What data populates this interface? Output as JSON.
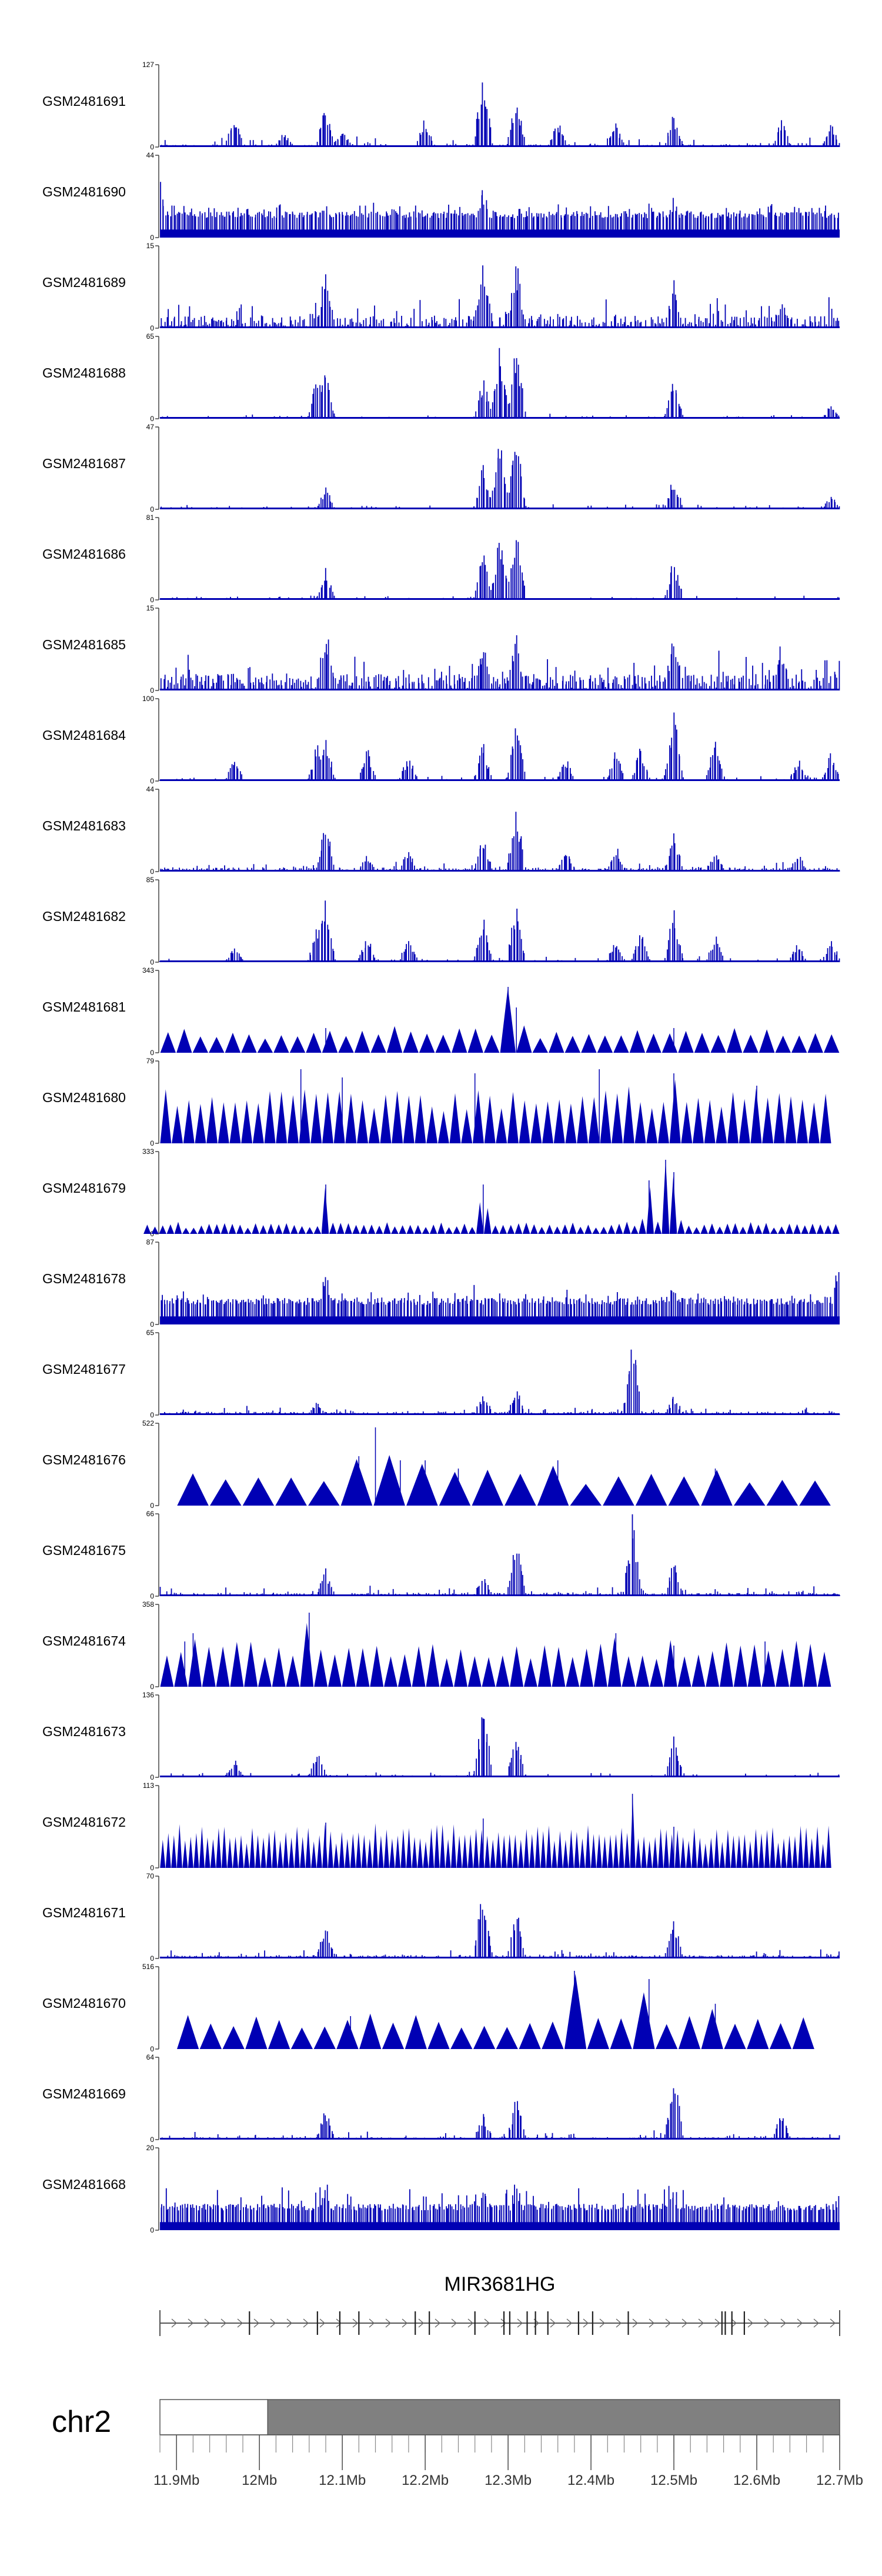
{
  "chart_data": {
    "type": "genome-browser-tracks",
    "tracks": [
      {
        "name": "GSM2481691",
        "ymax": 127,
        "ymin": 0,
        "style": "dense",
        "seed": 11,
        "base": 0.03,
        "noise": 0.12,
        "peaks": [
          [
            11.97,
            0.45
          ],
          [
            12.03,
            0.2
          ],
          [
            12.08,
            0.55
          ],
          [
            12.1,
            0.25
          ],
          [
            12.2,
            0.4
          ],
          [
            12.27,
            1.0
          ],
          [
            12.31,
            0.7
          ],
          [
            12.36,
            0.35
          ],
          [
            12.43,
            0.3
          ],
          [
            12.5,
            0.45
          ],
          [
            12.63,
            0.35
          ],
          [
            12.69,
            0.3
          ]
        ]
      },
      {
        "name": "GSM2481690",
        "ymax": 44,
        "ymin": 0,
        "style": "hash",
        "seed": 12,
        "base": 0.28,
        "noise": 0.12,
        "peaks": [
          [
            11.88,
            0.9
          ],
          [
            12.08,
            0.5
          ],
          [
            12.27,
            0.7
          ],
          [
            12.5,
            0.6
          ]
        ]
      },
      {
        "name": "GSM2481689",
        "ymax": 15,
        "ymin": 0,
        "style": "dense",
        "seed": 13,
        "base": 0.15,
        "noise": 0.35,
        "peaks": [
          [
            12.08,
            0.8
          ],
          [
            12.27,
            1.0
          ],
          [
            12.31,
            0.9
          ],
          [
            12.5,
            0.6
          ],
          [
            12.63,
            0.4
          ]
        ]
      },
      {
        "name": "GSM2481688",
        "ymax": 65,
        "ymin": 0,
        "style": "dense",
        "seed": 14,
        "base": 0.02,
        "noise": 0.05,
        "peaks": [
          [
            12.07,
            0.6
          ],
          [
            12.08,
            0.65
          ],
          [
            12.27,
            0.55
          ],
          [
            12.29,
            0.9
          ],
          [
            12.31,
            1.0
          ],
          [
            12.5,
            0.6
          ],
          [
            12.69,
            0.2
          ]
        ]
      },
      {
        "name": "GSM2481687",
        "ymax": 47,
        "ymin": 0,
        "style": "dense",
        "seed": 15,
        "base": 0.02,
        "noise": 0.06,
        "peaks": [
          [
            12.08,
            0.3
          ],
          [
            12.27,
            0.6
          ],
          [
            12.29,
            0.9
          ],
          [
            12.31,
            1.0
          ],
          [
            12.5,
            0.45
          ],
          [
            12.69,
            0.2
          ]
        ]
      },
      {
        "name": "GSM2481686",
        "ymax": 81,
        "ymin": 0,
        "style": "dense",
        "seed": 16,
        "base": 0.02,
        "noise": 0.05,
        "peaks": [
          [
            12.08,
            0.4
          ],
          [
            12.27,
            0.6
          ],
          [
            12.29,
            0.85
          ],
          [
            12.31,
            1.0
          ],
          [
            12.5,
            0.55
          ]
        ]
      },
      {
        "name": "GSM2481685",
        "ymax": 15,
        "ymin": 0,
        "style": "dense",
        "seed": 17,
        "base": 0.2,
        "noise": 0.4,
        "peaks": [
          [
            12.08,
            0.9
          ],
          [
            12.27,
            0.7
          ],
          [
            12.31,
            0.7
          ],
          [
            12.5,
            0.8
          ],
          [
            12.63,
            0.5
          ]
        ]
      },
      {
        "name": "GSM2481684",
        "ymax": 100,
        "ymin": 0,
        "style": "dense",
        "seed": 18,
        "base": 0.02,
        "noise": 0.06,
        "peaks": [
          [
            11.97,
            0.3
          ],
          [
            12.07,
            0.5
          ],
          [
            12.08,
            0.6
          ],
          [
            12.13,
            0.45
          ],
          [
            12.18,
            0.35
          ],
          [
            12.27,
            0.5
          ],
          [
            12.31,
            0.8
          ],
          [
            12.37,
            0.3
          ],
          [
            12.43,
            0.4
          ],
          [
            12.46,
            0.45
          ],
          [
            12.5,
            0.95
          ],
          [
            12.55,
            0.6
          ],
          [
            12.65,
            0.3
          ],
          [
            12.69,
            0.4
          ]
        ]
      },
      {
        "name": "GSM2481683",
        "ymax": 44,
        "ymin": 0,
        "style": "dense",
        "seed": 19,
        "base": 0.05,
        "noise": 0.1,
        "peaks": [
          [
            12.08,
            0.7
          ],
          [
            12.13,
            0.25
          ],
          [
            12.18,
            0.3
          ],
          [
            12.27,
            0.45
          ],
          [
            12.31,
            0.9
          ],
          [
            12.37,
            0.3
          ],
          [
            12.43,
            0.35
          ],
          [
            12.5,
            0.5
          ],
          [
            12.55,
            0.3
          ],
          [
            12.65,
            0.25
          ]
        ]
      },
      {
        "name": "GSM2481682",
        "ymax": 85,
        "ymin": 0,
        "style": "dense",
        "seed": 20,
        "base": 0.02,
        "noise": 0.06,
        "peaks": [
          [
            11.97,
            0.2
          ],
          [
            12.07,
            0.5
          ],
          [
            12.08,
            0.8
          ],
          [
            12.13,
            0.35
          ],
          [
            12.18,
            0.35
          ],
          [
            12.27,
            0.6
          ],
          [
            12.31,
            0.8
          ],
          [
            12.43,
            0.3
          ],
          [
            12.46,
            0.4
          ],
          [
            12.5,
            0.7
          ],
          [
            12.55,
            0.35
          ],
          [
            12.65,
            0.25
          ],
          [
            12.69,
            0.3
          ]
        ]
      },
      {
        "name": "GSM2481681",
        "ymax": 343,
        "ymin": 0,
        "style": "tri",
        "seed": 21,
        "base": 0.2,
        "noise": 0.08,
        "count": 42,
        "start": 11.88,
        "end": 12.7,
        "peaks": [
          [
            12.08,
            0.3
          ],
          [
            12.3,
            0.8
          ],
          [
            12.31,
            0.55
          ],
          [
            12.5,
            0.3
          ]
        ]
      },
      {
        "name": "GSM2481680",
        "ymax": 79,
        "ymin": 0,
        "style": "tri",
        "seed": 22,
        "base": 0.5,
        "noise": 0.08,
        "count": 58,
        "start": 11.88,
        "end": 12.69,
        "peaks": [
          [
            12.05,
            0.9
          ],
          [
            12.1,
            0.8
          ],
          [
            12.26,
            0.85
          ],
          [
            12.41,
            0.9
          ],
          [
            12.5,
            0.85
          ],
          [
            12.6,
            0.7
          ]
        ]
      },
      {
        "name": "GSM2481679",
        "ymax": 333,
        "ymin": 0,
        "style": "tri",
        "seed": 23,
        "base": 0.08,
        "noise": 0.06,
        "count": 90,
        "start": 11.86,
        "end": 12.7,
        "peaks": [
          [
            12.08,
            0.6
          ],
          [
            12.27,
            0.6
          ],
          [
            12.47,
            0.65
          ],
          [
            12.49,
            0.9
          ],
          [
            12.5,
            0.75
          ]
        ]
      },
      {
        "name": "GSM2481678",
        "ymax": 87,
        "ymin": 0,
        "style": "hash",
        "seed": 24,
        "base": 0.28,
        "noise": 0.1,
        "peaks": [
          [
            12.08,
            0.7
          ],
          [
            12.26,
            0.55
          ],
          [
            12.5,
            0.6
          ],
          [
            12.7,
            1.0
          ]
        ]
      },
      {
        "name": "GSM2481677",
        "ymax": 65,
        "ymin": 0,
        "style": "dense",
        "seed": 25,
        "base": 0.04,
        "noise": 0.1,
        "peaks": [
          [
            12.07,
            0.2
          ],
          [
            12.27,
            0.3
          ],
          [
            12.31,
            0.35
          ],
          [
            12.45,
            1.0
          ],
          [
            12.5,
            0.25
          ]
        ]
      },
      {
        "name": "GSM2481676",
        "ymax": 522,
        "ymin": 0,
        "style": "tri",
        "seed": 26,
        "base": 0.3,
        "noise": 0.1,
        "count": 20,
        "start": 11.9,
        "end": 12.69,
        "peaks": [
          [
            12.14,
            0.95
          ],
          [
            12.12,
            0.6
          ],
          [
            12.17,
            0.55
          ],
          [
            12.2,
            0.55
          ],
          [
            12.24,
            0.45
          ],
          [
            12.36,
            0.55
          ],
          [
            12.55,
            0.45
          ]
        ]
      },
      {
        "name": "GSM2481675",
        "ymax": 66,
        "ymin": 0,
        "style": "dense",
        "seed": 27,
        "base": 0.04,
        "noise": 0.12,
        "peaks": [
          [
            12.08,
            0.35
          ],
          [
            12.27,
            0.35
          ],
          [
            12.31,
            0.8
          ],
          [
            12.45,
            1.0
          ],
          [
            12.5,
            0.45
          ]
        ]
      },
      {
        "name": "GSM2481674",
        "ymax": 358,
        "ymin": 0,
        "style": "tri",
        "seed": 27,
        "base": 0.4,
        "noise": 0.08,
        "count": 48,
        "start": 11.88,
        "end": 12.69,
        "peaks": [
          [
            11.91,
            0.55
          ],
          [
            11.92,
            0.65
          ],
          [
            12.06,
            0.9
          ],
          [
            12.43,
            0.65
          ],
          [
            12.5,
            0.5
          ],
          [
            12.61,
            0.55
          ]
        ]
      },
      {
        "name": "GSM2481673",
        "ymax": 136,
        "ymin": 0,
        "style": "dense",
        "seed": 28,
        "base": 0.02,
        "noise": 0.07,
        "peaks": [
          [
            11.97,
            0.25
          ],
          [
            12.07,
            0.35
          ],
          [
            12.27,
            0.95
          ],
          [
            12.31,
            0.55
          ],
          [
            12.5,
            0.5
          ]
        ]
      },
      {
        "name": "GSM2481672",
        "ymax": 113,
        "ymin": 0,
        "style": "tri",
        "seed": 29,
        "base": 0.38,
        "noise": 0.08,
        "count": 120,
        "start": 11.88,
        "end": 12.69,
        "peaks": [
          [
            12.08,
            0.55
          ],
          [
            12.27,
            0.6
          ],
          [
            12.45,
            0.9
          ],
          [
            12.5,
            0.5
          ]
        ]
      },
      {
        "name": "GSM2481671",
        "ymax": 70,
        "ymin": 0,
        "style": "dense",
        "seed": 30,
        "base": 0.04,
        "noise": 0.1,
        "peaks": [
          [
            12.08,
            0.5
          ],
          [
            12.27,
            0.95
          ],
          [
            12.31,
            0.65
          ],
          [
            12.5,
            0.5
          ]
        ]
      },
      {
        "name": "GSM2481670",
        "ymax": 516,
        "ymin": 0,
        "style": "tri",
        "seed": 31,
        "base": 0.3,
        "noise": 0.08,
        "count": 28,
        "start": 11.9,
        "end": 12.67,
        "peaks": [
          [
            12.11,
            0.4
          ],
          [
            12.38,
            0.95
          ],
          [
            12.47,
            0.85
          ],
          [
            12.55,
            0.55
          ]
        ]
      },
      {
        "name": "GSM2481669",
        "ymax": 64,
        "ymin": 0,
        "style": "dense",
        "seed": 32,
        "base": 0.03,
        "noise": 0.1,
        "peaks": [
          [
            12.08,
            0.4
          ],
          [
            12.27,
            0.35
          ],
          [
            12.31,
            0.55
          ],
          [
            12.5,
            0.95
          ],
          [
            12.63,
            0.35
          ]
        ]
      },
      {
        "name": "GSM2481668",
        "ymax": 20,
        "ymin": 0,
        "style": "hash",
        "seed": 33,
        "base": 0.28,
        "noise": 0.25,
        "peaks": [
          [
            12.08,
            0.7
          ],
          [
            12.27,
            0.6
          ],
          [
            12.31,
            0.7
          ],
          [
            12.5,
            0.6
          ]
        ]
      }
    ],
    "gene": {
      "name": "MIR3681HG",
      "start": 11.88,
      "end": 12.7,
      "strand": "+",
      "exons": [
        11.988,
        12.07,
        12.097,
        12.12,
        12.188,
        12.205,
        12.26,
        12.295,
        12.302,
        12.323,
        12.333,
        12.348,
        12.385,
        12.402,
        12.445,
        12.558,
        12.562,
        12.57,
        12.585
      ]
    },
    "chromosome": {
      "name": "chr2",
      "view_start": 11.88,
      "view_end": 12.7,
      "band_boundary": 12.01
    },
    "xaxis": {
      "tick_labels": [
        "11.9Mb",
        "12Mb",
        "12.1Mb",
        "12.2Mb",
        "12.3Mb",
        "12.4Mb",
        "12.5Mb",
        "12.6Mb",
        "12.7Mb"
      ],
      "tick_values": [
        11.9,
        12.0,
        12.1,
        12.2,
        12.3,
        12.4,
        12.5,
        12.6,
        12.7
      ],
      "minor_step": 0.02
    },
    "colors": {
      "signal": "#0000b4",
      "text": "#000000",
      "axis": "#444444",
      "band_white": "#ffffff",
      "band_grey": "#808080"
    }
  }
}
